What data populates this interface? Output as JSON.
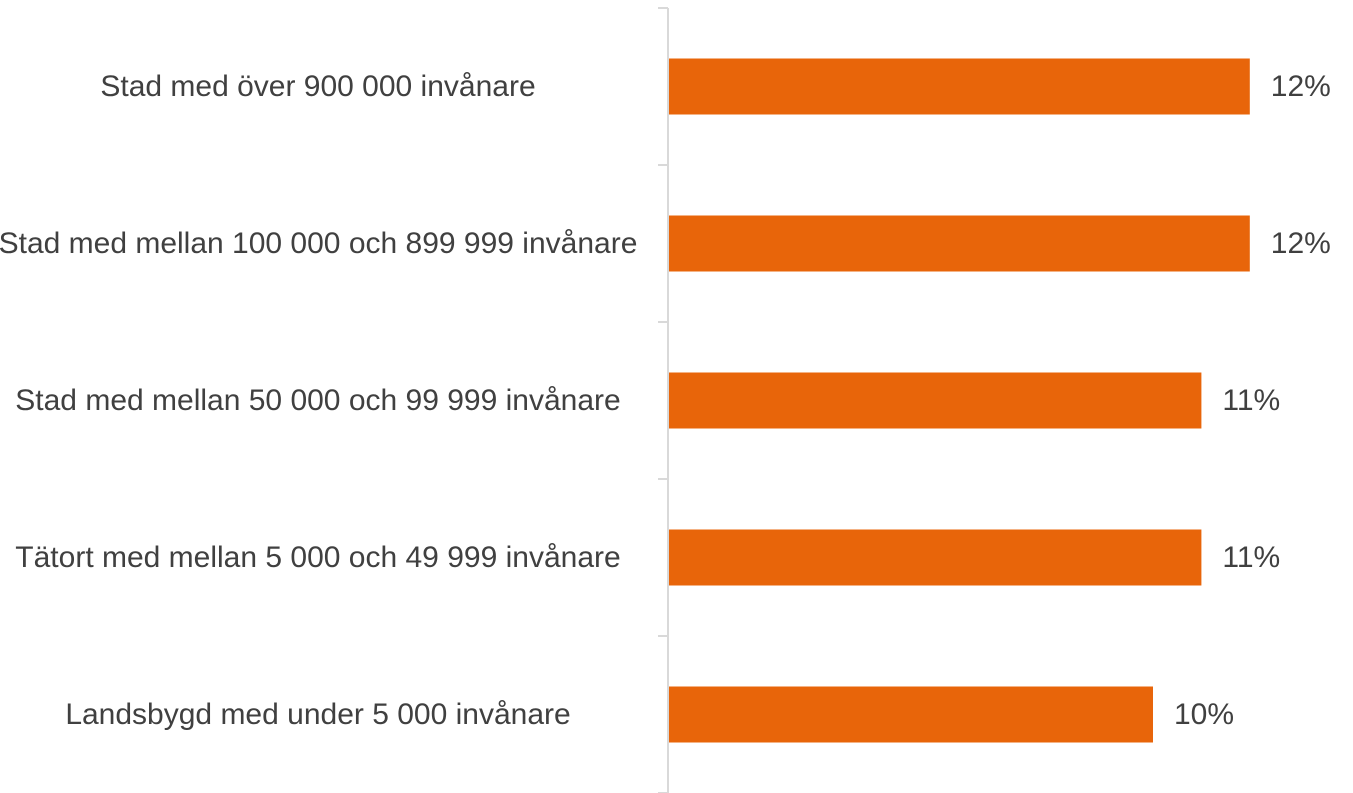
{
  "chart_data": {
    "type": "bar",
    "orientation": "horizontal",
    "categories": [
      "Stad med över 900 000 invånare",
      "Stad med mellan 100 000 och 899 999 invånare",
      "Stad med mellan 50 000 och 99 999 invånare",
      "Tätort med mellan 5 000 och 49 999 invånare",
      "Landsbygd med under 5 000 invånare"
    ],
    "values": [
      12,
      12,
      11,
      11,
      10
    ],
    "value_labels": [
      "12%",
      "12%",
      "11%",
      "11%",
      "10%"
    ],
    "color": "#e8650a"
  }
}
